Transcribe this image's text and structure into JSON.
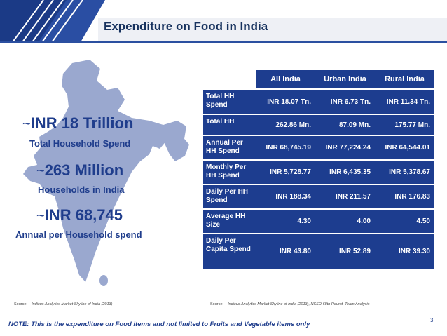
{
  "title": "Expenditure on Food in India",
  "colors": {
    "navy": "#1d3d8f",
    "map": "#9aa8cf",
    "title_text": "#17325e"
  },
  "stats": [
    {
      "prefix": "~",
      "value": "INR 18 Trillion",
      "label": "Total Household Spend"
    },
    {
      "prefix": "~",
      "value": "263 Million",
      "label": "Households in India"
    },
    {
      "prefix": "~",
      "value": "INR 68,745",
      "label": "Annual per Household spend"
    }
  ],
  "table": {
    "columns": [
      "All India",
      "Urban India",
      "Rural India"
    ],
    "rows": [
      {
        "label": "Total HH Spend",
        "values": [
          "INR 18.07 Tn.",
          "INR 6.73 Tn.",
          "INR 11.34 Tn."
        ]
      },
      {
        "label": "Total HH",
        "values": [
          "262.86 Mn.",
          "87.09 Mn.",
          "175.77 Mn."
        ]
      },
      {
        "label": "Annual Per HH Spend",
        "values": [
          "INR 68,745.19",
          "INR 77,224.24",
          "INR 64,544.01"
        ]
      },
      {
        "label": "Monthly Per HH Spend",
        "values": [
          "INR 5,728.77",
          "INR 6,435.35",
          "INR 5,378.67"
        ]
      },
      {
        "label": "Daily Per HH Spend",
        "values": [
          "INR 188.34",
          "INR 211.57",
          "INR 176.83"
        ]
      },
      {
        "label": "Average HH Size",
        "values": [
          "4.30",
          "4.00",
          "4.50"
        ]
      },
      {
        "label": "Daily Per Capita Spend",
        "values": [
          "INR 43.80",
          "INR 52.89",
          "INR 39.30"
        ]
      }
    ]
  },
  "source_left": {
    "label": "Source:",
    "text": "Indicus Analytics Market Skyline of India (2013)"
  },
  "source_right": {
    "label": "Source:",
    "text": "Indicus Analytics Market Skyline of India (2013), NSSO 68th Round, Team Analysis"
  },
  "note": "NOTE: This is the expenditure on Food items and not limited to Fruits and Vegetable items only",
  "page_number": "3"
}
